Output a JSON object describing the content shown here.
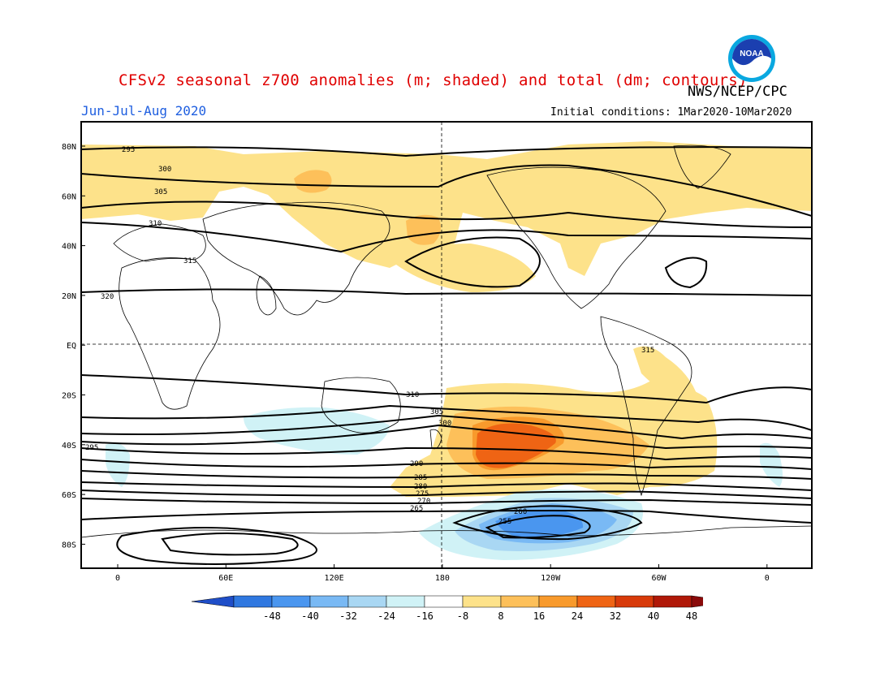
{
  "title": "CFSv2 seasonal z700 anomalies (m; shaded) and total (dm; contours)",
  "agency": "NWS/NCEP/CPC",
  "period": "Jun-Jul-Aug 2020",
  "initial_conditions": "Initial conditions: 1Mar2020-10Mar2020",
  "logo_text": "NOAA",
  "map": {
    "lat_labels": [
      "80N",
      "60N",
      "40N",
      "20N",
      "EQ",
      "20S",
      "40S",
      "60S",
      "80S"
    ],
    "lon_labels": [
      "0",
      "60E",
      "120E",
      "180",
      "120W",
      "60W",
      "0"
    ],
    "contour_labels": [
      "295",
      "300",
      "305",
      "310",
      "315",
      "320",
      "315",
      "310",
      "305",
      "300",
      "295",
      "290",
      "285",
      "280",
      "275",
      "270",
      "265",
      "260",
      "255"
    ]
  },
  "colorbar": {
    "ticks": [
      "-48",
      "-40",
      "-32",
      "-24",
      "-16",
      "-8",
      "8",
      "16",
      "24",
      "32",
      "40",
      "48"
    ],
    "colors": [
      "#1f4ec8",
      "#2f78e0",
      "#4a96ef",
      "#79b9f4",
      "#a9d7f3",
      "#d0f2f6",
      "#ffffff",
      "#fde28a",
      "#fdc05a",
      "#f89a2c",
      "#ef6414",
      "#d83a0a",
      "#b01808",
      "#8a0a0a"
    ]
  },
  "anomaly_colors": {
    "pos1": "#fde28a",
    "pos2": "#fdc05a",
    "pos3": "#f89a2c",
    "pos4": "#ef6414",
    "neg1": "#d0f2f6",
    "neg2": "#a9d7f3",
    "neg3": "#79b9f4",
    "neg4": "#4a96ef"
  }
}
